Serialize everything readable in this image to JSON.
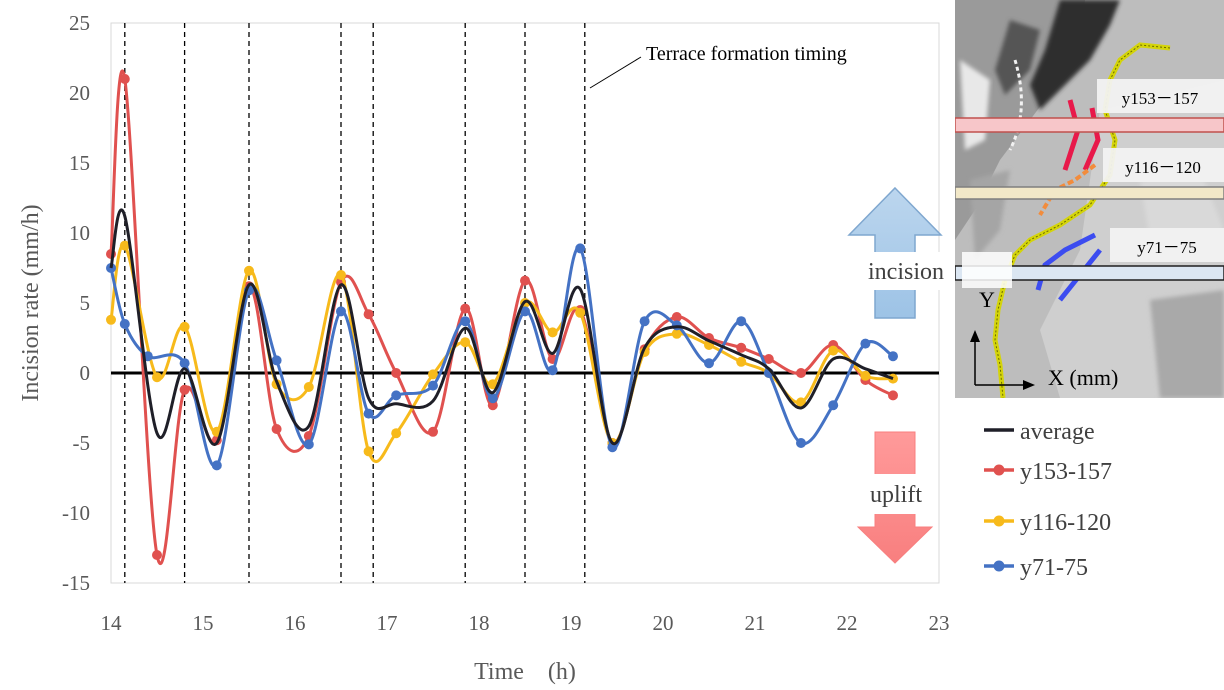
{
  "chart_data": {
    "type": "line",
    "xlabel": "Time　(h)",
    "ylabel": "Incision rate (mm/h)",
    "xlim": [
      14,
      23
    ],
    "ylim": [
      -15,
      25
    ],
    "xticks": [
      14,
      15,
      16,
      17,
      18,
      19,
      20,
      21,
      22,
      23
    ],
    "yticks": [
      -15,
      -10,
      -5,
      0,
      5,
      10,
      15,
      20,
      25
    ],
    "grid": false,
    "legend_position": "right",
    "zero_line": true,
    "terrace_formation_times": [
      14.15,
      14.8,
      15.5,
      16.5,
      16.85,
      17.85,
      18.5,
      19.15
    ],
    "annotation_terrace": "Terrace formation timing",
    "annotation_incision": "incision",
    "annotation_uplift": "uplift",
    "series": [
      {
        "name": "average",
        "color": "#1f1f28",
        "markers": false,
        "x": [
          14.0,
          14.15,
          14.5,
          14.8,
          15.15,
          15.5,
          15.8,
          16.15,
          16.5,
          16.8,
          17.1,
          17.5,
          17.85,
          18.15,
          18.5,
          18.8,
          19.1,
          19.45,
          19.8,
          20.15,
          20.5,
          20.85,
          21.15,
          21.5,
          21.85,
          22.2,
          22.5
        ],
        "y": [
          7.5,
          11.2,
          -4.3,
          0.3,
          -5.0,
          6.3,
          -0.6,
          -3.8,
          6.3,
          -1.8,
          -2.2,
          -2.0,
          3.2,
          -1.4,
          5.1,
          1.4,
          6.0,
          -5.0,
          1.8,
          3.3,
          2.3,
          1.3,
          0.3,
          -2.5,
          1.0,
          0.3,
          -0.4
        ]
      },
      {
        "name": "y153-157",
        "color": "#e0514f",
        "markers": true,
        "x": [
          14.0,
          14.15,
          14.5,
          14.8,
          15.15,
          15.5,
          15.8,
          16.15,
          16.5,
          16.8,
          17.1,
          17.5,
          17.85,
          18.15,
          18.5,
          18.8,
          19.1,
          19.45,
          19.8,
          20.15,
          20.5,
          20.85,
          21.15,
          21.5,
          21.85,
          22.2,
          22.5
        ],
        "y": [
          8.5,
          21.0,
          -13.0,
          -1.2,
          -4.8,
          6.2,
          -4.0,
          -4.5,
          6.5,
          4.2,
          0.0,
          -4.2,
          4.6,
          -2.3,
          6.6,
          1.0,
          4.5,
          -5.0,
          1.7,
          4.0,
          2.5,
          1.8,
          1.0,
          0.0,
          2.0,
          -0.5,
          -1.6
        ]
      },
      {
        "name": "y116-120",
        "color": "#f7ba1b",
        "markers": true,
        "x": [
          14.0,
          14.15,
          14.5,
          14.8,
          15.15,
          15.5,
          15.8,
          16.15,
          16.5,
          16.8,
          17.1,
          17.5,
          17.85,
          18.15,
          18.5,
          18.8,
          19.1,
          19.45,
          19.8,
          20.15,
          20.5,
          20.85,
          21.15,
          21.5,
          21.85,
          22.2,
          22.5
        ],
        "y": [
          3.8,
          9.1,
          -0.3,
          3.3,
          -4.2,
          7.3,
          -0.8,
          -1.0,
          7.0,
          -5.6,
          -4.3,
          -0.1,
          2.2,
          -0.8,
          5.0,
          2.9,
          4.3,
          -5.0,
          1.5,
          2.8,
          2.0,
          0.8,
          0.0,
          -2.1,
          1.6,
          -0.2,
          -0.4
        ]
      },
      {
        "name": "y71-75",
        "color": "#4472c4",
        "markers": true,
        "x": [
          14.0,
          14.15,
          14.4,
          14.8,
          15.15,
          15.5,
          15.8,
          16.15,
          16.5,
          16.8,
          17.1,
          17.5,
          17.85,
          18.15,
          18.5,
          18.8,
          19.1,
          19.45,
          19.8,
          20.15,
          20.5,
          20.85,
          21.15,
          21.5,
          21.85,
          22.2,
          22.5
        ],
        "y": [
          7.5,
          3.5,
          1.2,
          0.7,
          -6.6,
          5.9,
          0.9,
          -5.1,
          4.4,
          -2.9,
          -1.6,
          -0.9,
          3.7,
          -1.8,
          4.4,
          0.2,
          8.9,
          -5.3,
          3.7,
          3.4,
          0.7,
          3.7,
          0.0,
          -5.0,
          -2.3,
          2.1,
          1.2
        ]
      }
    ]
  },
  "map": {
    "label_top": "y153－157",
    "label_mid": "y116－120",
    "label_low": "y71－75",
    "axis_y": "Y",
    "axis_x": "X (mm)"
  },
  "legend": {
    "items": [
      "average",
      "y153-157",
      "y116-120",
      "y71-75"
    ]
  }
}
